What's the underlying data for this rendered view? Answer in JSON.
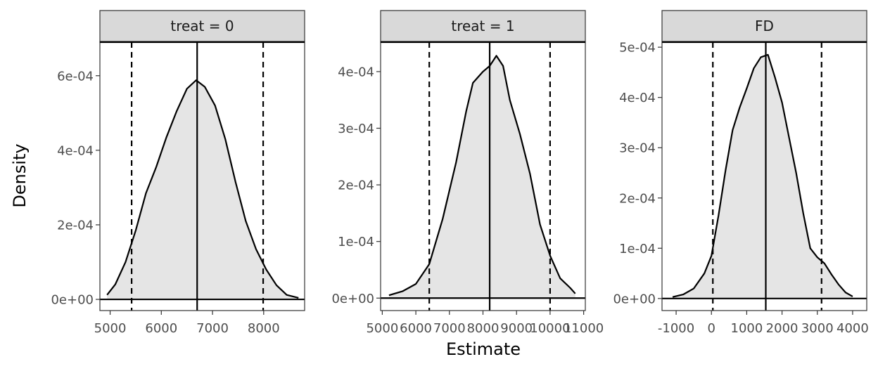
{
  "chart_data": {
    "type": "area",
    "xlabel": "Estimate",
    "ylabel": "Density",
    "grid": false,
    "legend": "none",
    "colors": {
      "fill": "#e5e5e5",
      "line": "#000000",
      "strip": "#d9d9d9",
      "frame": "#333333"
    },
    "panels": [
      {
        "strip_label": "treat = 0",
        "xlim": [
          4800,
          8800
        ],
        "ylim": [
          -3e-05,
          0.00069
        ],
        "x_ticks": [
          5000,
          6000,
          7000,
          8000
        ],
        "x_tick_labels": [
          "5000",
          "6000",
          "7000",
          "8000"
        ],
        "y_ticks": [
          0,
          0.0002,
          0.0004,
          0.0006
        ],
        "y_tick_labels": [
          "0e+00",
          "2e-04",
          "4e-04",
          "6e-04"
        ],
        "point_estimate": 6700,
        "ci": [
          5420,
          7990
        ],
        "density": [
          [
            4940,
            1.2e-05
          ],
          [
            5100,
            4e-05
          ],
          [
            5300,
            0.0001
          ],
          [
            5500,
            0.000185
          ],
          [
            5700,
            0.000285
          ],
          [
            5900,
            0.000355
          ],
          [
            6100,
            0.000435
          ],
          [
            6300,
            0.000505
          ],
          [
            6500,
            0.000565
          ],
          [
            6680,
            0.000588
          ],
          [
            6850,
            0.00057
          ],
          [
            7050,
            0.00052
          ],
          [
            7250,
            0.00043
          ],
          [
            7450,
            0.000315
          ],
          [
            7650,
            0.00021
          ],
          [
            7850,
            0.000135
          ],
          [
            8050,
            8e-05
          ],
          [
            8250,
            3.8e-05
          ],
          [
            8450,
            1.2e-05
          ],
          [
            8680,
            4e-06
          ]
        ]
      },
      {
        "strip_label": "treat = 1",
        "xlim": [
          4950,
          11050
        ],
        "ylim": [
          -2.2e-05,
          0.000452
        ],
        "x_ticks": [
          5000,
          6000,
          7000,
          8000,
          9000,
          10000,
          11000
        ],
        "x_tick_labels": [
          "5000",
          "6000",
          "7000",
          "8000",
          "9000",
          "10000",
          "11000"
        ],
        "y_ticks": [
          0,
          0.0001,
          0.0002,
          0.0003,
          0.0004
        ],
        "y_tick_labels": [
          "0e+00",
          "1e-04",
          "2e-04",
          "3e-04",
          "4e-04"
        ],
        "point_estimate": 8200,
        "ci": [
          6400,
          10000
        ],
        "density": [
          [
            5200,
            5e-06
          ],
          [
            5600,
            1.2e-05
          ],
          [
            6000,
            2.5e-05
          ],
          [
            6400,
            6e-05
          ],
          [
            6800,
            0.00014
          ],
          [
            7200,
            0.00024
          ],
          [
            7500,
            0.00033
          ],
          [
            7700,
            0.00038
          ],
          [
            8000,
            0.0004
          ],
          [
            8200,
            0.00041
          ],
          [
            8400,
            0.000428
          ],
          [
            8600,
            0.00041
          ],
          [
            8800,
            0.00035
          ],
          [
            9100,
            0.00029
          ],
          [
            9400,
            0.00022
          ],
          [
            9700,
            0.00013
          ],
          [
            10000,
            7.5e-05
          ],
          [
            10300,
            3.5e-05
          ],
          [
            10600,
            1.8e-05
          ],
          [
            10750,
            8e-06
          ]
        ]
      },
      {
        "strip_label": "FD",
        "xlim": [
          -1400,
          4400
        ],
        "ylim": [
          -2.4e-05,
          0.00051
        ],
        "x_ticks": [
          -1000,
          0,
          1000,
          2000,
          3000,
          4000
        ],
        "x_tick_labels": [
          "-1000",
          "0",
          "1000",
          "2000",
          "3000",
          "4000"
        ],
        "y_ticks": [
          0,
          0.0001,
          0.0002,
          0.0003,
          0.0004,
          0.0005
        ],
        "y_tick_labels": [
          "0e+00",
          "1e-04",
          "2e-04",
          "3e-04",
          "4e-04",
          "5e-04"
        ],
        "point_estimate": 1540,
        "ci": [
          40,
          3120
        ],
        "density": [
          [
            -1100,
            3e-06
          ],
          [
            -800,
            8e-06
          ],
          [
            -500,
            2e-05
          ],
          [
            -200,
            5e-05
          ],
          [
            0,
            8.5e-05
          ],
          [
            200,
            0.000165
          ],
          [
            400,
            0.000255
          ],
          [
            600,
            0.000335
          ],
          [
            800,
            0.00038
          ],
          [
            1000,
            0.000418
          ],
          [
            1200,
            0.000458
          ],
          [
            1400,
            0.00048
          ],
          [
            1600,
            0.000485
          ],
          [
            1800,
            0.00044
          ],
          [
            2000,
            0.00039
          ],
          [
            2200,
            0.00032
          ],
          [
            2400,
            0.00025
          ],
          [
            2600,
            0.00017
          ],
          [
            2800,
            0.0001
          ],
          [
            3000,
            8.2e-05
          ],
          [
            3200,
            7e-05
          ],
          [
            3400,
            4.8e-05
          ],
          [
            3600,
            2.8e-05
          ],
          [
            3800,
            1.2e-05
          ],
          [
            4000,
            4e-06
          ]
        ]
      }
    ]
  }
}
